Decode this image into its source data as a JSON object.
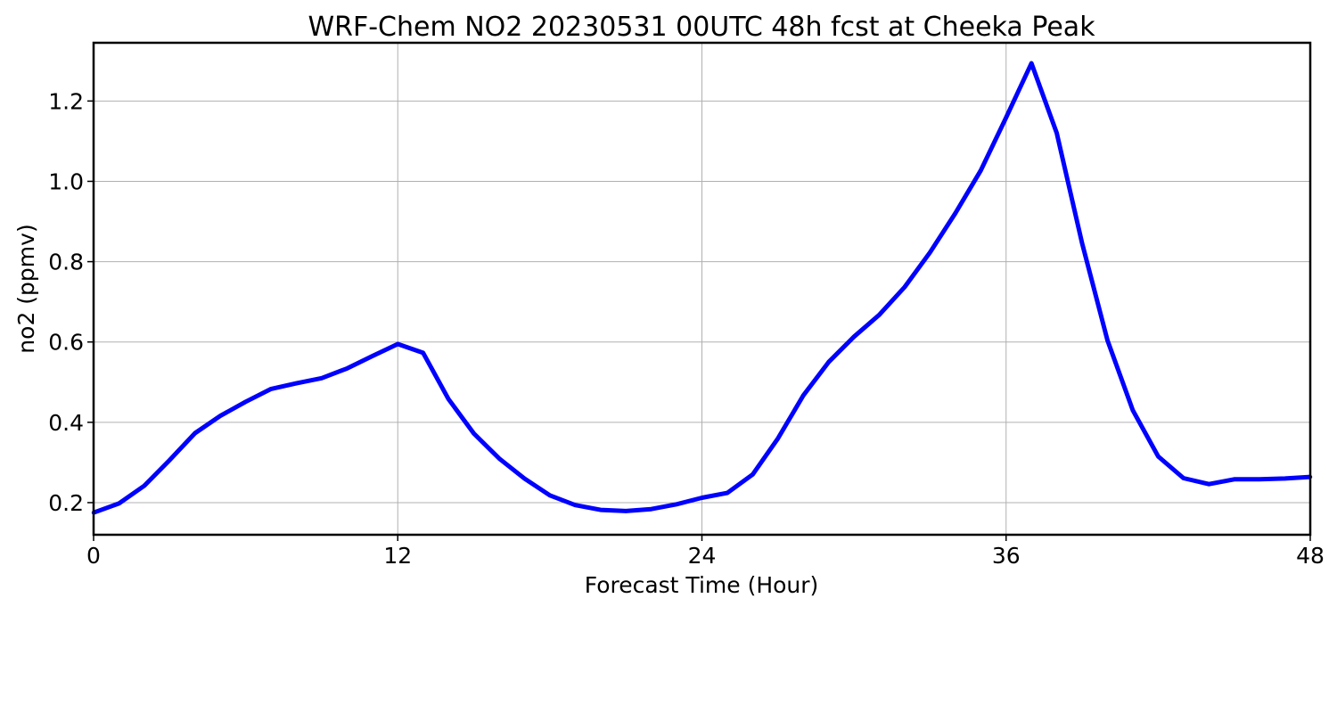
{
  "chart_data": {
    "type": "line",
    "title": "WRF-Chem NO2  20230531 00UTC 48h fcst at Cheeka Peak",
    "xlabel": "Forecast Time (Hour)",
    "ylabel": "no2  (ppmv)",
    "xlim": [
      0,
      48
    ],
    "ylim": [
      0.12,
      1.345
    ],
    "xticks": [
      0,
      12,
      24,
      36,
      48
    ],
    "yticks": [
      0.2,
      0.4,
      0.6,
      0.8,
      1.0,
      1.2
    ],
    "ytick_labels": [
      "0.2",
      "0.4",
      "0.6",
      "0.8",
      "1.0",
      "1.2"
    ],
    "grid": true,
    "line_color": "#0000ff",
    "grid_color": "#b0b0b0",
    "series": [
      {
        "x": [
          0,
          1,
          2,
          3,
          4,
          5,
          6,
          7,
          8,
          9,
          10,
          11,
          12,
          13,
          14,
          15,
          16,
          17,
          18,
          19,
          20,
          21,
          22,
          23,
          24,
          25,
          26,
          27,
          28,
          29,
          30,
          31,
          32,
          33,
          34,
          35,
          36,
          37,
          38,
          39,
          40,
          41,
          42,
          43,
          44,
          45,
          46,
          47,
          48
        ],
        "values": [
          0.175,
          0.198,
          0.242,
          0.306,
          0.373,
          0.416,
          0.451,
          0.483,
          0.497,
          0.51,
          0.534,
          0.565,
          0.595,
          0.573,
          0.458,
          0.372,
          0.31,
          0.26,
          0.218,
          0.194,
          0.182,
          0.179,
          0.184,
          0.196,
          0.212,
          0.224,
          0.27,
          0.36,
          0.467,
          0.55,
          0.613,
          0.668,
          0.737,
          0.823,
          0.921,
          1.027,
          1.159,
          1.294,
          1.12,
          0.845,
          0.604,
          0.43,
          0.315,
          0.261,
          0.246,
          0.258,
          0.258,
          0.26,
          0.264
        ]
      }
    ]
  }
}
